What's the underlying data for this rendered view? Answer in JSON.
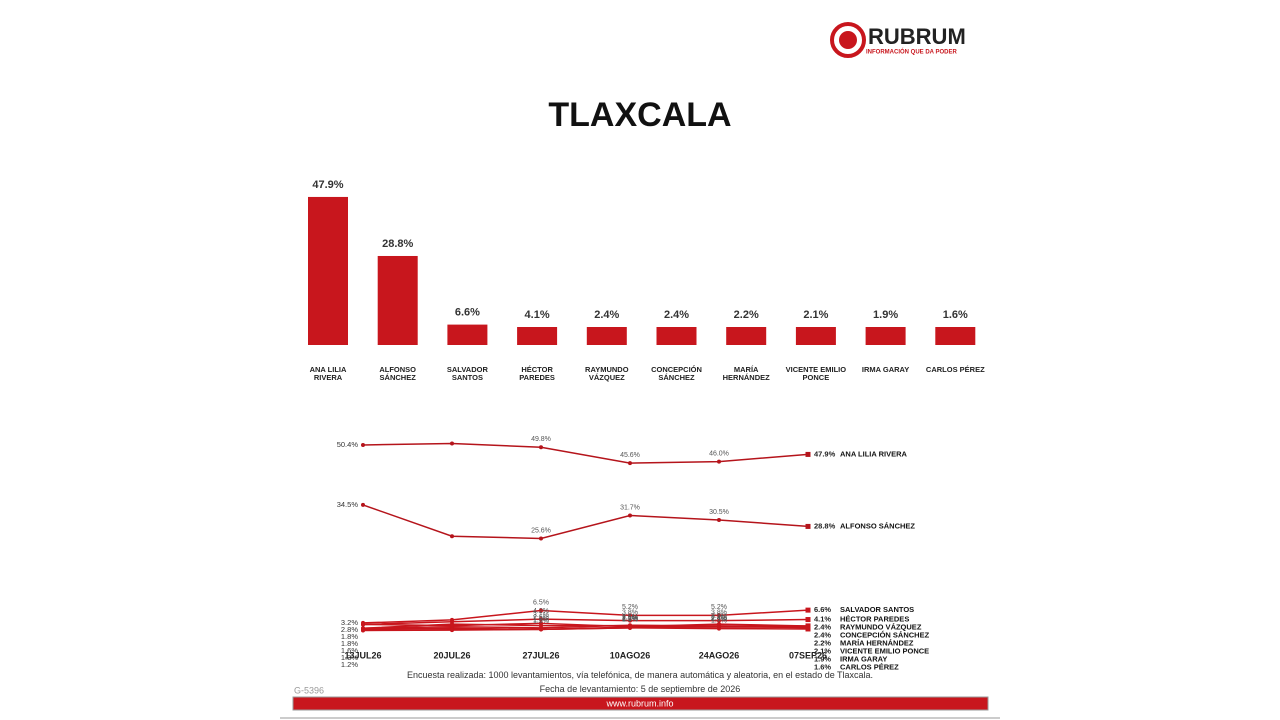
{
  "header": {
    "brand": "RUBRUM",
    "tagline": "INFORMACIÓN QUE DA PODER",
    "title": "TLAXCALA"
  },
  "chart_data": [
    {
      "type": "bar",
      "color": "#c8161d",
      "categories": [
        "ANA LILIA RIVERA",
        "ALFONSO SÁNCHEZ",
        "SALVADOR SANTOS",
        "HÉCTOR PAREDES",
        "RAYMUNDO VÁZQUEZ",
        "CONCEPCIÓN SÁNCHEZ",
        "MARÍA HERNÁNDEZ",
        "VICENTE EMILIO PONCE",
        "IRMA GARAY",
        "CARLOS PÉREZ"
      ],
      "values": [
        47.9,
        28.8,
        6.6,
        4.1,
        2.4,
        2.4,
        2.2,
        2.1,
        1.9,
        1.6
      ],
      "value_labels": [
        "47.9%",
        "28.8%",
        "6.6%",
        "4.1%",
        "2.4%",
        "2.4%",
        "2.2%",
        "2.1%",
        "1.9%",
        "1.6%"
      ],
      "ylim": [
        0,
        55
      ]
    },
    {
      "type": "line",
      "ylim": [
        0,
        55
      ],
      "categories": [
        "13JUL26",
        "20JUL26",
        "27JUL26",
        "10AGO26",
        "24AGO26",
        "07SEP26"
      ],
      "series": [
        {
          "name": "ANA LILIA RIVERA",
          "color": "#b5141b",
          "values": [
            50.4,
            50.8,
            49.8,
            45.6,
            46.0,
            47.9
          ],
          "value_labels": [
            "50.4%",
            null,
            "49.8%",
            "45.6%",
            "46.0%",
            "47.9%"
          ]
        },
        {
          "name": "ALFONSO SÁNCHEZ",
          "color": "#b5141b",
          "values": [
            34.5,
            26.2,
            25.6,
            31.7,
            30.5,
            28.8
          ],
          "value_labels": [
            "34.5%",
            null,
            "25.6%",
            "31.7%",
            "30.5%",
            "28.8%"
          ]
        },
        {
          "name": "SALVADOR SANTOS",
          "color": "#c8161d",
          "values": [
            3.2,
            4.0,
            6.5,
            5.2,
            5.2,
            6.6
          ],
          "value_labels": [
            "3.2%",
            null,
            "6.5%",
            "5.2%",
            "5.2%",
            "6.6%"
          ]
        },
        {
          "name": "HÉCTOR PAREDES",
          "color": "#c8161d",
          "values": [
            2.8,
            3.5,
            4.2,
            3.8,
            3.8,
            4.1
          ],
          "value_labels": [
            "2.8%",
            null,
            "4.2%",
            "3.8%",
            "3.8%",
            "4.1%"
          ]
        },
        {
          "name": "RAYMUNDO VÁZQUEZ",
          "color": "#c8161d",
          "values": [
            2.8,
            2.5,
            3.1,
            2.2,
            2.9,
            2.4
          ],
          "value_labels": [
            null,
            null,
            "3.1%",
            "2.2%",
            "2.9%",
            "2.4%"
          ]
        },
        {
          "name": "CONCEPCIÓN SÁNCHEZ",
          "color": "#c8161d",
          "values": [
            1.8,
            2.9,
            2.5,
            2.5,
            2.4,
            2.4
          ],
          "value_labels": [
            "1.8%",
            null,
            "2.5%",
            "2.5%",
            "2.4%",
            "2.4%"
          ]
        },
        {
          "name": "MARÍA HERNÁNDEZ",
          "color": "#c8161d",
          "values": [
            1.8,
            2.2,
            1.9,
            2.6,
            2.4,
            2.2
          ],
          "value_labels": [
            "1.8%",
            null,
            "1.9%",
            "2.6%",
            "2.4%",
            "2.2%"
          ]
        },
        {
          "name": "VICENTE EMILIO PONCE",
          "color": "#c8161d",
          "values": [
            1.6,
            1.8,
            1.5,
            2.1,
            2.1,
            2.1
          ],
          "value_labels": [
            "1.6%",
            null,
            "1.5%",
            "2.1%",
            "2.1%",
            "2.1%"
          ]
        },
        {
          "name": "IRMA GARAY",
          "color": "#c8161d",
          "values": [
            1.3,
            1.4,
            1.5,
            1.9,
            2.4,
            1.9
          ],
          "value_labels": [
            "1.3%",
            null,
            null,
            "1.9%",
            "2.4%",
            "1.9%"
          ]
        },
        {
          "name": "CARLOS PÉREZ",
          "color": "#c8161d",
          "values": [
            1.2,
            1.3,
            1.5,
            1.9,
            1.7,
            1.6
          ],
          "value_labels": [
            "1.2%",
            null,
            null,
            null,
            "1.7%",
            "1.6%"
          ]
        }
      ]
    }
  ],
  "footer": {
    "note": "Encuesta realizada: 1000 levantamientos, vía telefónica, de manera automática y aleatoria, en el estado de Tlaxcala.",
    "date": "Fecha de levantamiento: 5 de septiembre de 2026",
    "code": "G-5396",
    "url": "www.rubrum.info"
  }
}
